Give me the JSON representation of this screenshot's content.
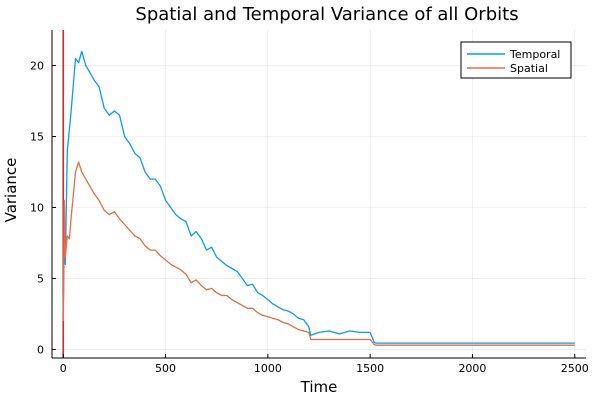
{
  "chart_data": {
    "type": "line",
    "title": "Spatial and Temporal Variance of all Orbits",
    "xlabel": "Time",
    "ylabel": "Variance",
    "xlim": [
      -55,
      2555
    ],
    "ylim": [
      -0.6,
      22.5
    ],
    "xticks": [
      0,
      500,
      1000,
      1500,
      2000,
      2500
    ],
    "yticks": [
      0,
      5,
      10,
      15,
      20
    ],
    "grid": true,
    "legend_position": "top-right",
    "vertical_marker": {
      "x": 0,
      "color": "#d62728"
    },
    "series": [
      {
        "name": "Temporal",
        "color": "#0f9af0",
        "x": [
          0,
          5,
          10,
          20,
          30,
          40,
          50,
          60,
          75,
          90,
          110,
          130,
          150,
          175,
          200,
          225,
          250,
          275,
          300,
          325,
          350,
          375,
          400,
          425,
          450,
          475,
          500,
          525,
          550,
          575,
          600,
          625,
          650,
          675,
          700,
          725,
          750,
          775,
          800,
          825,
          850,
          875,
          900,
          925,
          950,
          975,
          1000,
          1025,
          1050,
          1075,
          1100,
          1125,
          1150,
          1175,
          1200,
          1210,
          1250,
          1300,
          1350,
          1400,
          1450,
          1500,
          1520,
          1530,
          1600,
          1700,
          1800,
          1900,
          2000,
          2100,
          2200,
          2300,
          2400,
          2500
        ],
        "values": [
          3.0,
          7.5,
          6.0,
          14.0,
          15.5,
          17.0,
          18.8,
          20.5,
          20.2,
          21.0,
          20.0,
          19.5,
          19.0,
          18.5,
          17.0,
          16.5,
          16.8,
          16.5,
          15.0,
          14.5,
          13.8,
          13.5,
          12.5,
          12.0,
          12.0,
          11.5,
          10.5,
          10.0,
          9.5,
          9.2,
          9.0,
          8.0,
          8.3,
          7.8,
          7.0,
          7.2,
          6.5,
          6.2,
          5.9,
          5.7,
          5.5,
          5.0,
          4.5,
          4.6,
          4.0,
          3.8,
          3.5,
          3.2,
          3.0,
          2.8,
          2.7,
          2.5,
          2.2,
          2.1,
          1.6,
          1.0,
          1.2,
          1.3,
          1.1,
          1.3,
          1.2,
          1.2,
          0.5,
          0.45,
          0.45,
          0.45,
          0.45,
          0.45,
          0.45,
          0.45,
          0.45,
          0.45,
          0.45,
          0.45
        ]
      },
      {
        "name": "Spatial",
        "color": "#e26f46",
        "x": [
          0,
          5,
          10,
          20,
          30,
          40,
          50,
          60,
          75,
          90,
          110,
          130,
          150,
          175,
          200,
          225,
          250,
          275,
          300,
          325,
          350,
          375,
          400,
          425,
          450,
          475,
          500,
          525,
          550,
          575,
          600,
          625,
          650,
          675,
          700,
          725,
          750,
          775,
          800,
          825,
          850,
          875,
          900,
          925,
          950,
          975,
          1000,
          1025,
          1050,
          1075,
          1100,
          1125,
          1150,
          1175,
          1200,
          1210,
          1250,
          1300,
          1350,
          1400,
          1450,
          1500,
          1520,
          1530,
          1600,
          1700,
          1800,
          1900,
          2000,
          2100,
          2200,
          2300,
          2400,
          2500
        ],
        "values": [
          2.0,
          10.5,
          6.5,
          8.0,
          7.8,
          9.5,
          11.0,
          12.5,
          13.2,
          12.5,
          12.0,
          11.5,
          11.0,
          10.5,
          9.8,
          9.5,
          9.7,
          9.2,
          8.8,
          8.4,
          8.0,
          7.8,
          7.3,
          7.0,
          7.0,
          6.6,
          6.3,
          6.0,
          5.8,
          5.6,
          5.3,
          4.7,
          4.9,
          4.5,
          4.2,
          4.3,
          4.0,
          3.8,
          3.8,
          3.5,
          3.3,
          3.1,
          2.9,
          2.9,
          2.6,
          2.4,
          2.3,
          2.2,
          2.1,
          1.9,
          1.8,
          1.6,
          1.4,
          1.3,
          1.2,
          0.7,
          0.7,
          0.7,
          0.7,
          0.7,
          0.7,
          0.7,
          0.35,
          0.3,
          0.3,
          0.3,
          0.3,
          0.3,
          0.3,
          0.3,
          0.3,
          0.3,
          0.3,
          0.3
        ]
      }
    ]
  }
}
